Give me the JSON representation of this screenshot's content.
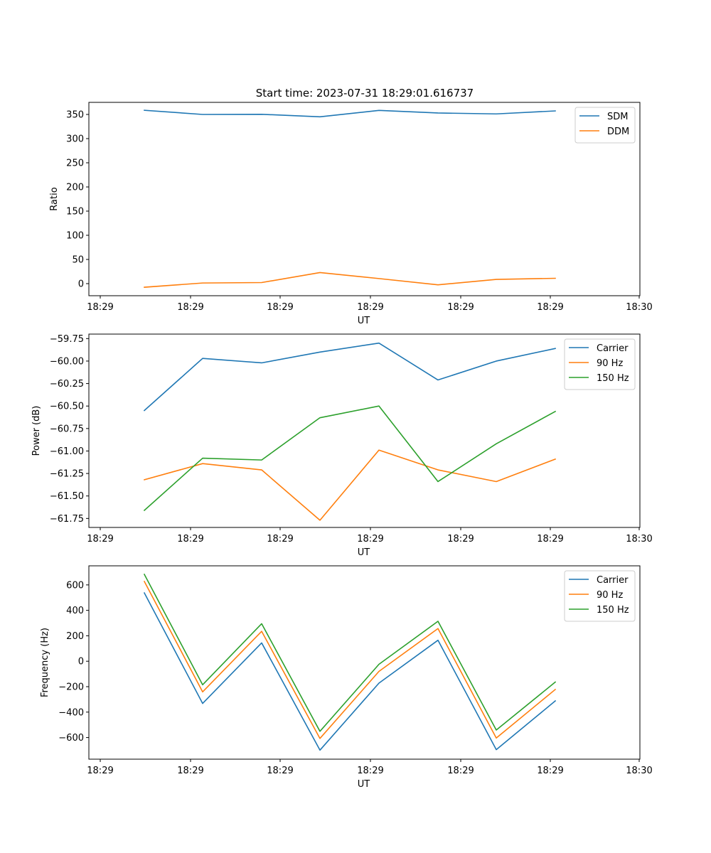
{
  "figure_title": "Start time: 2023-07-31 18:29:01.616737",
  "colors": {
    "c0": "#1f77b4",
    "c1": "#ff7f0e",
    "c2": "#2ca02c",
    "axes": "#000000",
    "legend_border": "#cccccc"
  },
  "chart_data": [
    {
      "type": "line",
      "xlabel": "UT",
      "ylabel": "Ratio",
      "x_tick_labels": [
        "18:29",
        "18:29",
        "18:29",
        "18:29",
        "18:29",
        "18:29",
        "18:30"
      ],
      "ylim": [
        -25,
        375
      ],
      "y_ticks": [
        0,
        50,
        100,
        150,
        200,
        250,
        300,
        350
      ],
      "y_tick_labels": [
        "0",
        "50",
        "100",
        "150",
        "200",
        "250",
        "300",
        "350"
      ],
      "legend_position": "top-right",
      "series": [
        {
          "name": "SDM",
          "color": "#1f77b4",
          "values": [
            358.6,
            350.0,
            350.3,
            345.1,
            358.4,
            353.0,
            351.1,
            357.3
          ]
        },
        {
          "name": "DDM",
          "color": "#ff7f0e",
          "values": [
            -7.5,
            1.3,
            2.2,
            22.9,
            10.5,
            -2.5,
            8.7,
            11.0
          ]
        }
      ]
    },
    {
      "type": "line",
      "xlabel": "UT",
      "ylabel": "Power (dB)",
      "x_tick_labels": [
        "18:29",
        "18:29",
        "18:29",
        "18:29",
        "18:29",
        "18:29",
        "18:30"
      ],
      "ylim": [
        -61.85,
        -59.7
      ],
      "y_ticks": [
        -61.75,
        -61.5,
        -61.25,
        -61.0,
        -60.75,
        -60.5,
        -60.25,
        -60.0,
        -59.75
      ],
      "y_tick_labels": [
        "−61.75",
        "−61.50",
        "−61.25",
        "−61.00",
        "−60.75",
        "−60.50",
        "−60.25",
        "−60.00",
        "−59.75"
      ],
      "legend_position": "top-right",
      "series": [
        {
          "name": "Carrier",
          "color": "#1f77b4",
          "values": [
            -60.55,
            -59.97,
            -60.02,
            -59.9,
            -59.8,
            -60.21,
            -60.0,
            -59.86
          ]
        },
        {
          "name": "90 Hz",
          "color": "#ff7f0e",
          "values": [
            -61.32,
            -61.14,
            -61.21,
            -61.77,
            -60.99,
            -61.21,
            -61.34,
            -61.09
          ]
        },
        {
          "name": "150 Hz",
          "color": "#2ca02c",
          "values": [
            -61.66,
            -61.08,
            -61.1,
            -60.63,
            -60.5,
            -61.34,
            -60.92,
            -60.56
          ]
        }
      ]
    },
    {
      "type": "line",
      "xlabel": "UT",
      "ylabel": "Frequency (Hz)",
      "x_tick_labels": [
        "18:29",
        "18:29",
        "18:29",
        "18:29",
        "18:29",
        "18:29",
        "18:30"
      ],
      "ylim": [
        -770,
        750
      ],
      "y_ticks": [
        -600,
        -400,
        -200,
        0,
        200,
        400,
        600
      ],
      "y_tick_labels": [
        "−600",
        "−400",
        "−200",
        "0",
        "200",
        "400",
        "600"
      ],
      "legend_position": "top-right",
      "series": [
        {
          "name": "Carrier",
          "color": "#1f77b4",
          "values": [
            537,
            -332,
            144,
            -699,
            -172,
            165,
            -695,
            -312
          ]
        },
        {
          "name": "90 Hz",
          "color": "#ff7f0e",
          "values": [
            627,
            -241,
            235,
            -607,
            -80,
            257,
            -604,
            -222
          ]
        },
        {
          "name": "150 Hz",
          "color": "#2ca02c",
          "values": [
            683,
            -185,
            295,
            -551,
            -24,
            314,
            -541,
            -164
          ]
        }
      ]
    }
  ]
}
